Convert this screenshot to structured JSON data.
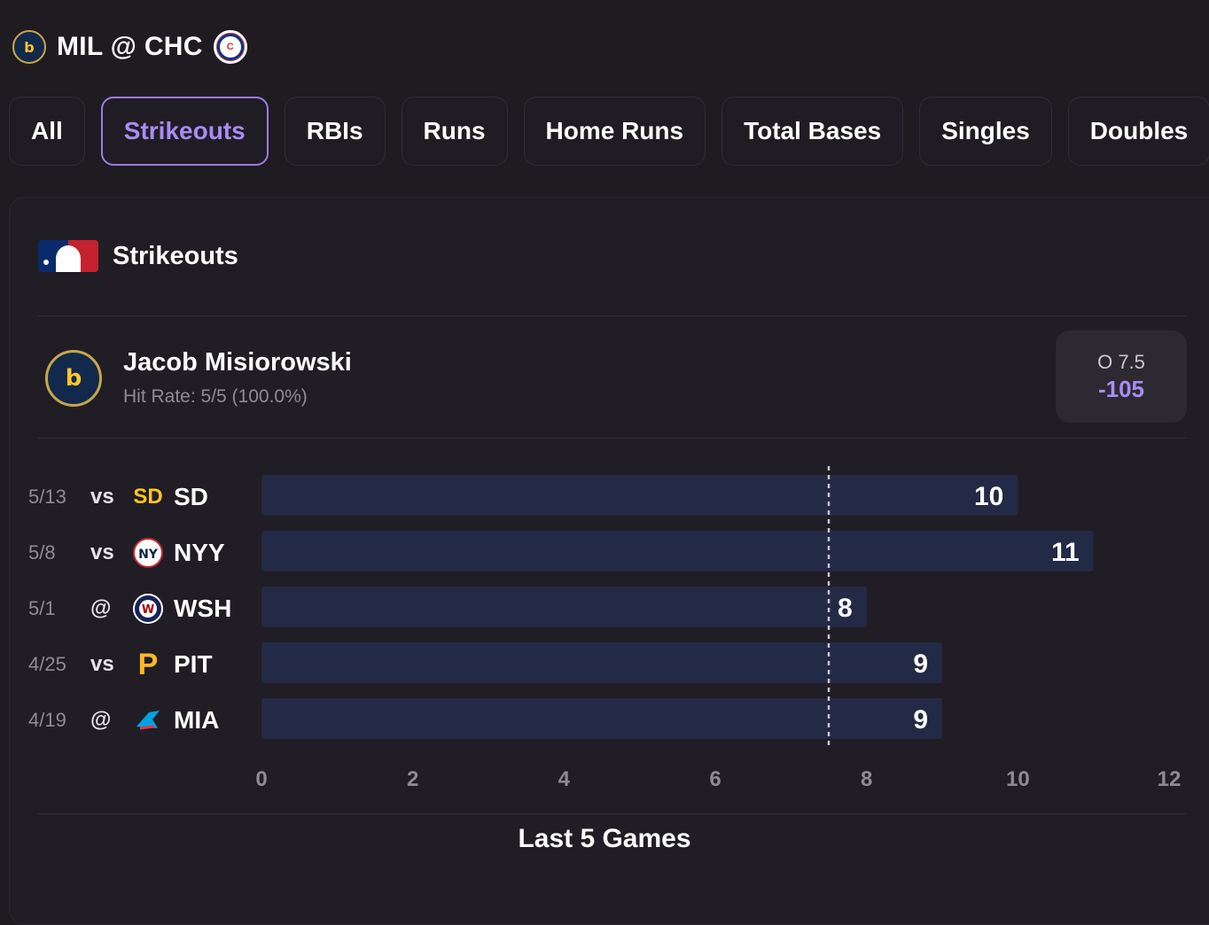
{
  "header": {
    "matchup": "MIL @ CHC",
    "away_logo_icon": "brewers-logo-icon",
    "home_logo_icon": "cubs-logo-icon"
  },
  "tabs": [
    {
      "label": "All",
      "active": false
    },
    {
      "label": "Strikeouts",
      "active": true
    },
    {
      "label": "RBIs",
      "active": false
    },
    {
      "label": "Runs",
      "active": false
    },
    {
      "label": "Home Runs",
      "active": false
    },
    {
      "label": "Total Bases",
      "active": false
    },
    {
      "label": "Singles",
      "active": false
    },
    {
      "label": "Doubles",
      "active": false
    }
  ],
  "card": {
    "title": "Strikeouts",
    "league_icon": "mlb-logo-icon"
  },
  "player": {
    "name": "Jacob Misiorowski",
    "hit_rate": "Hit Rate: 5/5 (100.0%)",
    "odds_line": "O 7.5",
    "odds_price": "-105"
  },
  "colors": {
    "accent": "#a98bf5",
    "bar": "#232a45",
    "background": "#1e1c21"
  },
  "chart_data": {
    "type": "bar",
    "orientation": "horizontal",
    "categories": [
      {
        "date": "5/13",
        "loc": "vs",
        "team": "SD"
      },
      {
        "date": "5/8",
        "loc": "vs",
        "team": "NYY"
      },
      {
        "date": "5/1",
        "loc": "@",
        "team": "WSH"
      },
      {
        "date": "4/25",
        "loc": "vs",
        "team": "PIT"
      },
      {
        "date": "4/19",
        "loc": "@",
        "team": "MIA"
      }
    ],
    "values": [
      10,
      11,
      8,
      9,
      9
    ],
    "threshold": 7.5,
    "xlim": [
      0,
      12
    ],
    "xticks": [
      0,
      2,
      4,
      6,
      8,
      10,
      12
    ],
    "grid": false,
    "caption": "Last 5 Games"
  }
}
